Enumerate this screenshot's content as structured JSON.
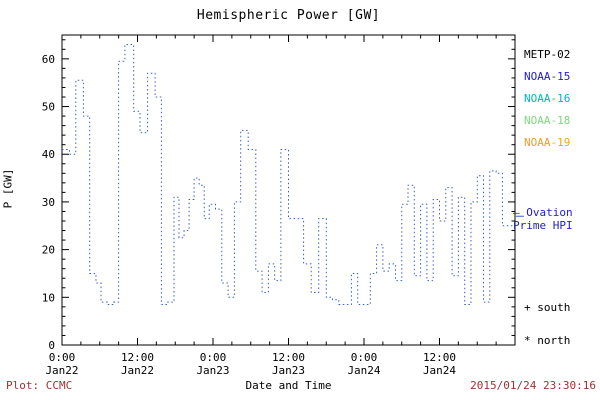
{
  "colors": {
    "axis": "#000000",
    "line": "#3a5fc8",
    "footer_text": "#993333",
    "ovation_text": "#2020cc"
  },
  "legend": {
    "items": [
      {
        "label": "METP-02",
        "color": "#000000"
      },
      {
        "label": "NOAA-15",
        "color": "#2020cc"
      },
      {
        "label": "NOAA-16",
        "color": "#00b0d0"
      },
      {
        "label": "NOAA-18",
        "color": "#7ed87e"
      },
      {
        "label": "NOAA-19",
        "color": "#f0a020"
      }
    ]
  },
  "annotations": {
    "ovation": {
      "dash": "–",
      "line1": "Ovation",
      "line2": "Prime HPI"
    },
    "south": "+ south",
    "north": "* north"
  },
  "footer": {
    "plot_label": "Plot: CCMC",
    "timestamp": "2015/01/24 23:30:16"
  },
  "chart_data": {
    "type": "line",
    "step": true,
    "line_style": "dotted",
    "line_color": "#3a5fc8",
    "title": "Hemispheric Power [GW]",
    "xlabel": "Date and Time",
    "ylabel": "P [GW]",
    "xlim": [
      0,
      72
    ],
    "ylim": [
      0,
      65
    ],
    "yticks": [
      0,
      10,
      20,
      30,
      40,
      50,
      60
    ],
    "y_minor_step": 2,
    "x_minor_step": 3,
    "grid": false,
    "legend_position": "right-outside",
    "xticks": [
      {
        "pos": 0,
        "time": "0:00",
        "date": "Jan22"
      },
      {
        "pos": 12,
        "time": "12:00",
        "date": "Jan22"
      },
      {
        "pos": 24,
        "time": "0:00",
        "date": "Jan23"
      },
      {
        "pos": 36,
        "time": "12:00",
        "date": "Jan23"
      },
      {
        "pos": 48,
        "time": "0:00",
        "date": "Jan24"
      },
      {
        "pos": 60,
        "time": "12:00",
        "date": "Jan24"
      }
    ],
    "ovation_marker_value": 27,
    "series": [
      {
        "name": "Ovation Prime HPI (hours since Jan22 00:00 UT, GW)",
        "x": [
          0,
          1.2,
          2.2,
          3.4,
          4.4,
          5.4,
          6.2,
          7.2,
          8.2,
          9,
          10,
          11.4,
          12.4,
          13.6,
          14.8,
          15.8,
          16.8,
          17.8,
          18.6,
          19.4,
          20.2,
          21,
          21.8,
          22.6,
          23.4,
          24.4,
          25.4,
          26.4,
          27.4,
          28.4,
          29.6,
          30.8,
          31.8,
          32.8,
          33.8,
          34.8,
          36,
          37.2,
          38.4,
          39.6,
          40.8,
          42,
          43,
          44,
          45,
          46,
          47,
          48,
          49,
          50,
          51,
          52,
          53,
          54,
          55,
          56,
          57,
          58,
          59,
          60,
          61,
          62,
          63,
          64,
          65,
          66,
          67,
          68,
          69,
          70,
          71
        ],
        "y": [
          41,
          40,
          55.5,
          48,
          15,
          13,
          9,
          8.5,
          9,
          59.5,
          63,
          49,
          44.5,
          57,
          52,
          8.5,
          9,
          31,
          22.5,
          24,
          30.5,
          35,
          33.5,
          26.5,
          29.5,
          28.5,
          13,
          10,
          30,
          45,
          41,
          15.5,
          11,
          17,
          13.5,
          41,
          26.5,
          26.5,
          17,
          11,
          26.5,
          10,
          9.5,
          8.5,
          8.5,
          15,
          8.5,
          8.5,
          15,
          21,
          15.5,
          17,
          13.5,
          29.5,
          33.5,
          14.5,
          29.5,
          13.5,
          30.5,
          26,
          33,
          14.5,
          31,
          8.5,
          30,
          35.5,
          9,
          36.5,
          36,
          25,
          25
        ]
      }
    ]
  }
}
